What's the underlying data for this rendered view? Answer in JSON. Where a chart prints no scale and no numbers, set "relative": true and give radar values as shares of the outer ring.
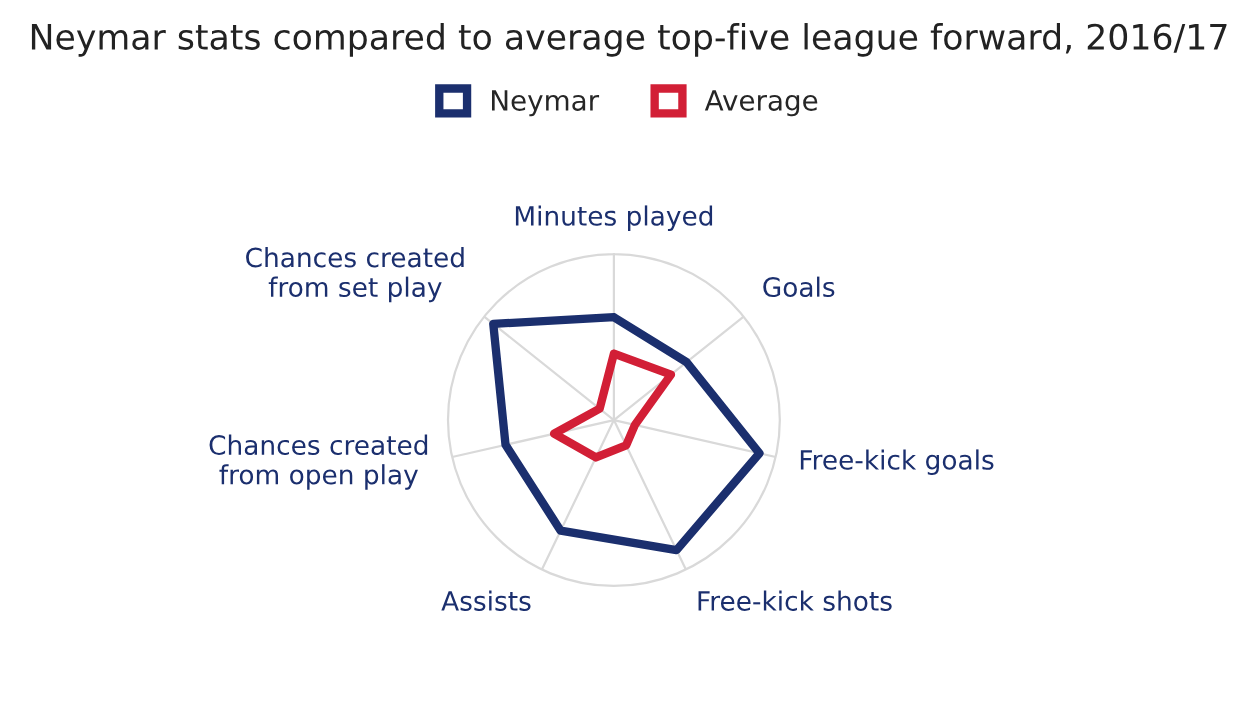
{
  "chart_data": {
    "type": "radar",
    "title": "Neymar stats compared to average top-five league forward, 2016/17",
    "categories": [
      "Minutes played",
      "Goals",
      "Free-kick goals",
      "Free-kick shots",
      "Assists",
      "Chances created\nfrom open play",
      "Chances created\nfrom set play"
    ],
    "relative": true,
    "legend": "top",
    "grid": true,
    "series": [
      {
        "name": "Neymar",
        "color": "#1b2f6e",
        "values": [
          0.62,
          0.56,
          0.9,
          0.87,
          0.74,
          0.67,
          0.93
        ]
      },
      {
        "name": "Average",
        "color": "#d21f36",
        "values": [
          0.4,
          0.44,
          0.13,
          0.17,
          0.25,
          0.37,
          0.11
        ]
      }
    ]
  }
}
